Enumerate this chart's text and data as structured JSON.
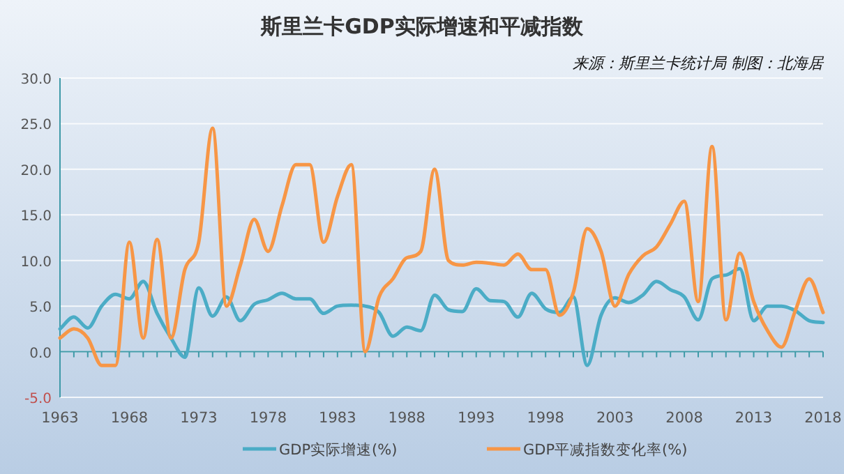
{
  "chart_data": {
    "type": "line",
    "title": "斯里兰卡GDP实际增速和平减指数",
    "annotations": [
      "来源：斯里兰卡统计局 制图：北海居"
    ],
    "x": [
      1963,
      1964,
      1965,
      1966,
      1967,
      1968,
      1969,
      1970,
      1971,
      1972,
      1973,
      1974,
      1975,
      1976,
      1977,
      1978,
      1979,
      1980,
      1981,
      1982,
      1983,
      1984,
      1985,
      1986,
      1987,
      1988,
      1989,
      1990,
      1991,
      1992,
      1993,
      1994,
      1995,
      1996,
      1997,
      1998,
      1999,
      2000,
      2001,
      2002,
      2003,
      2004,
      2005,
      2006,
      2007,
      2008,
      2009,
      2010,
      2011,
      2012,
      2013,
      2014,
      2015,
      2016,
      2017,
      2018
    ],
    "series": [
      {
        "name": "GDP实际增速(%)",
        "color": "#4bacc6",
        "values": [
          2.5,
          3.8,
          2.6,
          5.0,
          6.3,
          5.8,
          7.7,
          4.2,
          1.5,
          -0.6,
          7.0,
          3.9,
          6.0,
          3.4,
          5.2,
          5.7,
          6.4,
          5.8,
          5.8,
          4.2,
          5.0,
          5.1,
          5.0,
          4.3,
          1.7,
          2.7,
          2.3,
          6.2,
          4.6,
          4.4,
          6.9,
          5.6,
          5.5,
          3.8,
          6.4,
          4.7,
          4.3,
          6.0,
          -1.5,
          4.0,
          5.9,
          5.4,
          6.2,
          7.7,
          6.8,
          6.0,
          3.5,
          8.0,
          8.4,
          9.1,
          3.4,
          5.0,
          5.0,
          4.5,
          3.4,
          3.2
        ]
      },
      {
        "name": "GDP平减指数变化率(%)",
        "color": "#f79646",
        "values": [
          1.5,
          2.5,
          1.5,
          -1.5,
          -1.5,
          12.0,
          1.5,
          12.3,
          1.5,
          9.0,
          12.0,
          24.5,
          5.0,
          9.5,
          14.5,
          11.0,
          16.0,
          20.5,
          20.5,
          12.0,
          17.0,
          20.5,
          0.0,
          6.0,
          8.0,
          10.3,
          11.0,
          20.0,
          10.0,
          9.5,
          9.8,
          9.7,
          9.5,
          10.7,
          9.0,
          9.0,
          4.0,
          6.5,
          13.5,
          11.0,
          5.0,
          8.5,
          10.5,
          11.5,
          14.0,
          16.5,
          5.5,
          22.5,
          3.5,
          10.8,
          5.5,
          2.3,
          0.5,
          4.5,
          8.0,
          4.3
        ]
      }
    ],
    "xlim": [
      1963,
      2018
    ],
    "xticks": [
      1963,
      1968,
      1973,
      1978,
      1983,
      1988,
      1993,
      1998,
      2003,
      2008,
      2013,
      2018
    ],
    "ylim": [
      -5,
      30
    ],
    "yticks": [
      {
        "value": -5,
        "label": "-5.0"
      },
      {
        "value": 0,
        "label": "0.0"
      },
      {
        "value": 5,
        "label": "5.0"
      },
      {
        "value": 10,
        "label": "10.0"
      },
      {
        "value": 15,
        "label": "15.0"
      },
      {
        "value": 20,
        "label": "20.0"
      },
      {
        "value": 25,
        "label": "25.0"
      },
      {
        "value": 30,
        "label": "30.0"
      }
    ],
    "ref_lines": [
      {
        "axis": "y",
        "value": 0,
        "color": "#3f9aa8"
      }
    ],
    "grid": "y",
    "legend": "bottom",
    "marker": "none",
    "line_style": "solid"
  }
}
